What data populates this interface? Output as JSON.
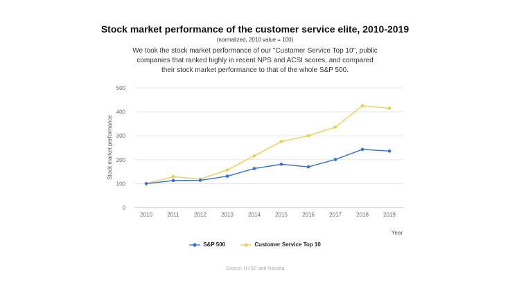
{
  "chart_data": {
    "type": "line",
    "title": "Stock market performance of the customer service elite, 2010-2019",
    "subtitle": "(normalized, 2010 value = 100)",
    "description": "We took the stock market performance of our \"Customer Service Top 10\", public companies that ranked highly in recent NPS and ACSI scores, and compared their stock market performance to that of the whole S&P 500.",
    "xlabel": "Year",
    "ylabel": "Stock market performance",
    "ylim": [
      0,
      500
    ],
    "yticks": [
      0,
      100,
      200,
      300,
      400,
      500
    ],
    "x": [
      "2010",
      "2011",
      "2012",
      "2013",
      "2014",
      "2015",
      "2016",
      "2017",
      "2018",
      "2019"
    ],
    "series": [
      {
        "name": "S&P 500",
        "color": "#2f6fe4",
        "values": [
          100,
          113,
          114,
          131,
          163,
          181,
          170,
          201,
          243,
          236
        ]
      },
      {
        "name": "Customer Service Top 10",
        "color": "#f4cd48",
        "values": [
          100,
          129,
          119,
          157,
          216,
          276,
          300,
          336,
          425,
          415
        ]
      }
    ],
    "grid": true,
    "legend_position": "bottom",
    "source": "Source: NYSE and Nasdaq"
  }
}
